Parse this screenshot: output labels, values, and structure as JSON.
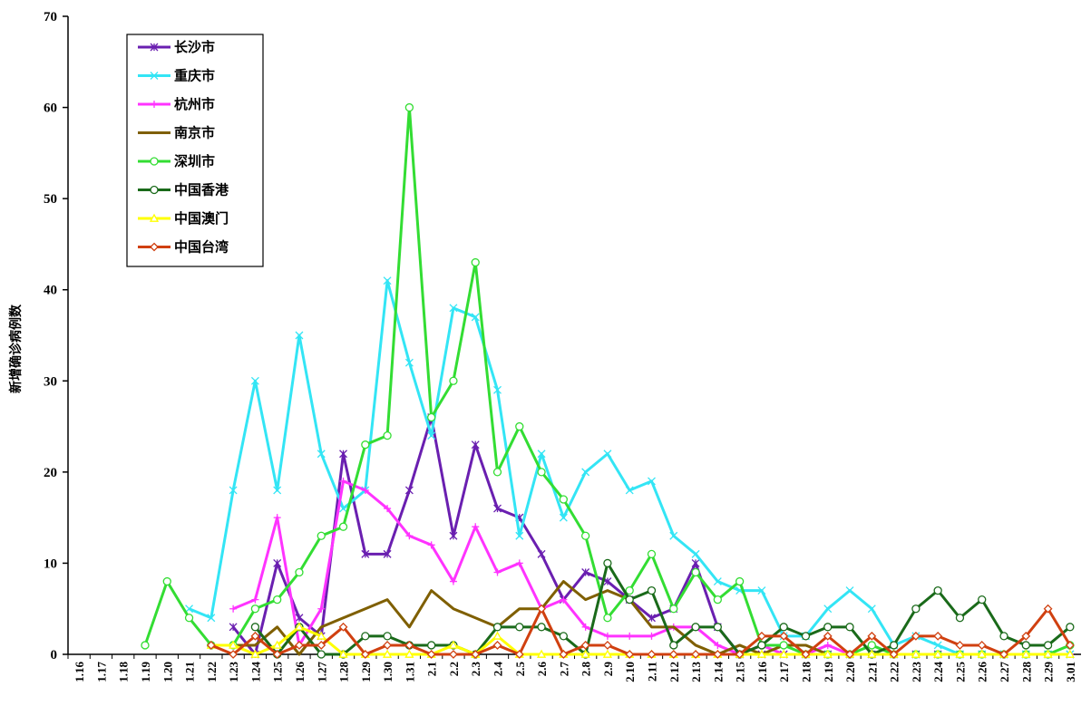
{
  "chart_data": {
    "type": "line",
    "y_label": "新增确诊病例数",
    "categories": [
      "1.16",
      "1.17",
      "1.18",
      "1.19",
      "1.20",
      "1.21",
      "1.22",
      "1.23",
      "1.24",
      "1.25",
      "1.26",
      "1.27",
      "1.28",
      "1.29",
      "1.30",
      "1.31",
      "2.1",
      "2.2",
      "2.3",
      "2.4",
      "2.5",
      "2.6",
      "2.7",
      "2.8",
      "2.9",
      "2.10",
      "2.11",
      "2.12",
      "2.13",
      "2.14",
      "2.15",
      "2.16",
      "2.17",
      "2.18",
      "2.19",
      "2.20",
      "2.21",
      "2.22",
      "2.23",
      "2.24",
      "2.25",
      "2.26",
      "2.27",
      "2.28",
      "2.29",
      "3.01"
    ],
    "ylim": [
      0,
      70
    ],
    "yticks": [
      0,
      10,
      20,
      30,
      40,
      50,
      60,
      70
    ],
    "grid": false,
    "legend": "upper-left",
    "series": [
      {
        "name": "长沙市",
        "color": "#6a1fb0",
        "marker": "star",
        "values": [
          null,
          null,
          null,
          null,
          null,
          null,
          null,
          3,
          0,
          10,
          4,
          2,
          22,
          11,
          11,
          18,
          26,
          13,
          23,
          16,
          15,
          11,
          6,
          9,
          8,
          6,
          4,
          5,
          10,
          3,
          0,
          0,
          0,
          0,
          0,
          0,
          0,
          0,
          0,
          0,
          0,
          0,
          0,
          0,
          0,
          0
        ]
      },
      {
        "name": "重庆市",
        "color": "#33e5f5",
        "marker": "x",
        "values": [
          null,
          null,
          null,
          null,
          null,
          5,
          4,
          18,
          30,
          18,
          35,
          22,
          16,
          18,
          41,
          32,
          24,
          38,
          37,
          29,
          13,
          22,
          15,
          20,
          22,
          18,
          19,
          13,
          11,
          8,
          7,
          7,
          2,
          2,
          5,
          7,
          5,
          1,
          2,
          1,
          0,
          0,
          0,
          0,
          0,
          0
        ]
      },
      {
        "name": "杭州市",
        "color": "#ff33ff",
        "marker": "plus",
        "values": [
          null,
          null,
          null,
          null,
          null,
          null,
          null,
          5,
          6,
          15,
          1,
          5,
          19,
          18,
          16,
          13,
          12,
          8,
          14,
          9,
          10,
          5,
          6,
          3,
          2,
          2,
          2,
          3,
          3,
          1,
          0,
          1,
          0,
          0,
          1,
          0,
          0,
          0,
          0,
          0,
          0,
          0,
          0,
          0,
          0,
          0
        ]
      },
      {
        "name": "南京市",
        "color": "#7f5f00",
        "marker": "none",
        "values": [
          null,
          null,
          null,
          null,
          null,
          null,
          1,
          1,
          1,
          3,
          0,
          3,
          4,
          5,
          6,
          3,
          7,
          5,
          4,
          3,
          5,
          5,
          8,
          6,
          7,
          6,
          3,
          3,
          1,
          0,
          1,
          0,
          1,
          1,
          0,
          0,
          0,
          0,
          0,
          0,
          0,
          0,
          0,
          0,
          0,
          0
        ]
      },
      {
        "name": "深圳市",
        "color": "#33dd33",
        "marker": "circle",
        "values": [
          null,
          null,
          null,
          1,
          8,
          4,
          1,
          1,
          5,
          6,
          9,
          13,
          14,
          23,
          24,
          60,
          26,
          30,
          43,
          20,
          25,
          20,
          17,
          13,
          4,
          7,
          11,
          5,
          9,
          6,
          8,
          1,
          1,
          0,
          0,
          0,
          1,
          0,
          0,
          0,
          0,
          0,
          0,
          0,
          0,
          1
        ]
      },
      {
        "name": "中国香港",
        "color": "#1a6a1a",
        "marker": "circle",
        "values": [
          null,
          null,
          null,
          null,
          null,
          null,
          null,
          null,
          3,
          0,
          3,
          0,
          0,
          2,
          2,
          1,
          1,
          1,
          0,
          3,
          3,
          3,
          2,
          0,
          10,
          6,
          7,
          1,
          3,
          3,
          0,
          1,
          3,
          2,
          3,
          3,
          0,
          1,
          5,
          7,
          4,
          6,
          2,
          1,
          1,
          3
        ]
      },
      {
        "name": "中国澳门",
        "color": "#ffff00",
        "marker": "triangle",
        "values": [
          null,
          null,
          null,
          null,
          null,
          null,
          1,
          1,
          0,
          1,
          3,
          2,
          0,
          0,
          0,
          0,
          0,
          1,
          0,
          2,
          0,
          0,
          0,
          0,
          0,
          0,
          0,
          0,
          0,
          0,
          0,
          0,
          0,
          0,
          0,
          0,
          0,
          0,
          0,
          0,
          0,
          0,
          0,
          0,
          0,
          0
        ]
      },
      {
        "name": "中国台湾",
        "color": "#d04010",
        "marker": "diamond",
        "values": [
          null,
          null,
          null,
          null,
          null,
          null,
          1,
          0,
          2,
          0,
          1,
          1,
          3,
          0,
          1,
          1,
          0,
          0,
          0,
          1,
          0,
          5,
          0,
          1,
          1,
          0,
          0,
          0,
          0,
          0,
          0,
          2,
          2,
          0,
          2,
          0,
          2,
          0,
          2,
          2,
          1,
          1,
          0,
          2,
          5,
          1
        ]
      }
    ]
  }
}
